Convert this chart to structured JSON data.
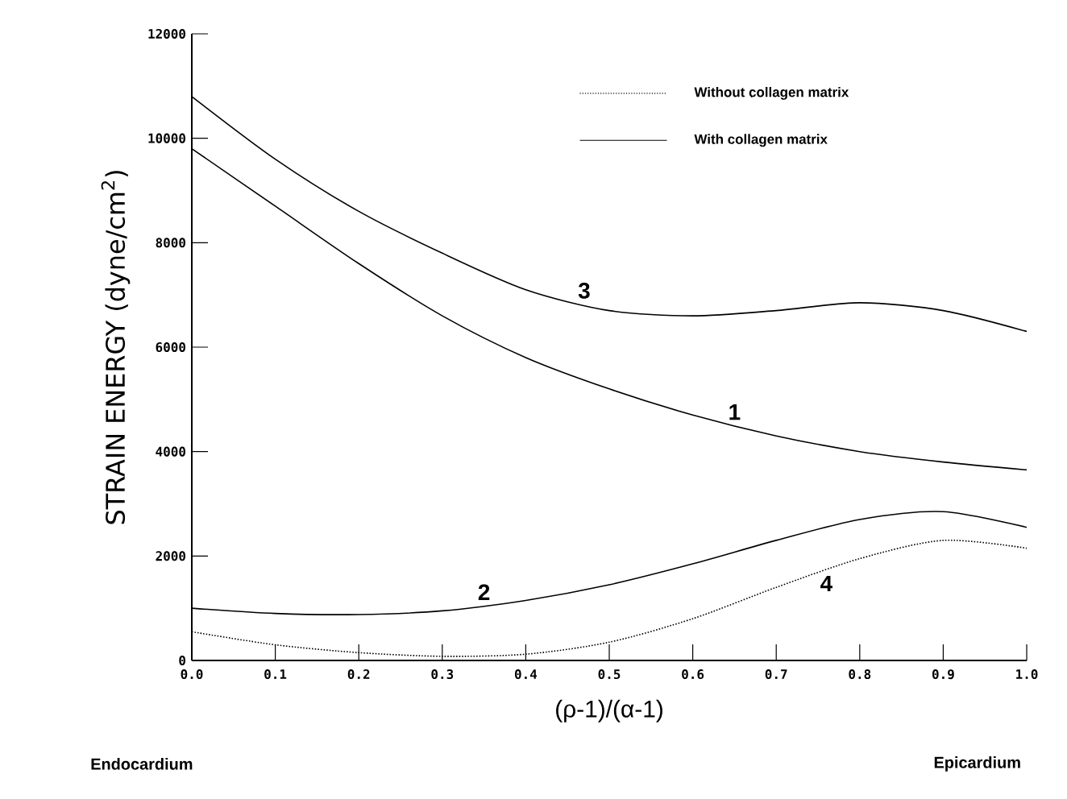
{
  "chart_data": {
    "type": "line",
    "xlabel": "(ρ-1)/(α-1)",
    "ylabel": "STRAIN ENERGY (dyne/cm$^{2}$)",
    "x": [
      0,
      0.1,
      0.2,
      0.3,
      0.4,
      0.5,
      0.6,
      0.7,
      0.8,
      0.9,
      1.0
    ],
    "series": [
      {
        "name": "1",
        "color": "#000000",
        "line_style": "solid",
        "values": [
          9800,
          8700,
          7600,
          6600,
          5800,
          5200,
          4700,
          4300,
          4000,
          3800,
          3650
        ]
      },
      {
        "name": "2",
        "color": "#000000",
        "line_style": "solid",
        "values": [
          1000,
          900,
          880,
          950,
          1150,
          1450,
          1850,
          2300,
          2700,
          2850,
          2550
        ]
      },
      {
        "name": "3",
        "color": "#000000",
        "line_style": "solid",
        "values": [
          10800,
          9600,
          8600,
          7800,
          7100,
          6700,
          6600,
          6700,
          6850,
          6700,
          6300
        ]
      },
      {
        "name": "4",
        "color": "#000000",
        "line_style": "dotted",
        "values": [
          550,
          300,
          150,
          80,
          120,
          350,
          800,
          1400,
          1950,
          2300,
          2150
        ]
      }
    ],
    "xlim": [
      0,
      1.0
    ],
    "ylim": [
      0,
      12000
    ],
    "xticks": [
      {
        "value": 0,
        "label": "0.0"
      },
      0.1,
      0.2,
      0.3,
      0.4,
      0.5,
      0.6,
      0.7,
      0.8,
      0.9,
      {
        "value": 1.0,
        "label": "1.0"
      }
    ],
    "yticks": [
      0,
      2000,
      4000,
      6000,
      8000,
      10000,
      12000
    ],
    "grid": false,
    "marker": "none",
    "annotations": [
      "Without collagen matrix",
      "With collagen matrix",
      "Endocardium",
      "Epicardium"
    ]
  }
}
